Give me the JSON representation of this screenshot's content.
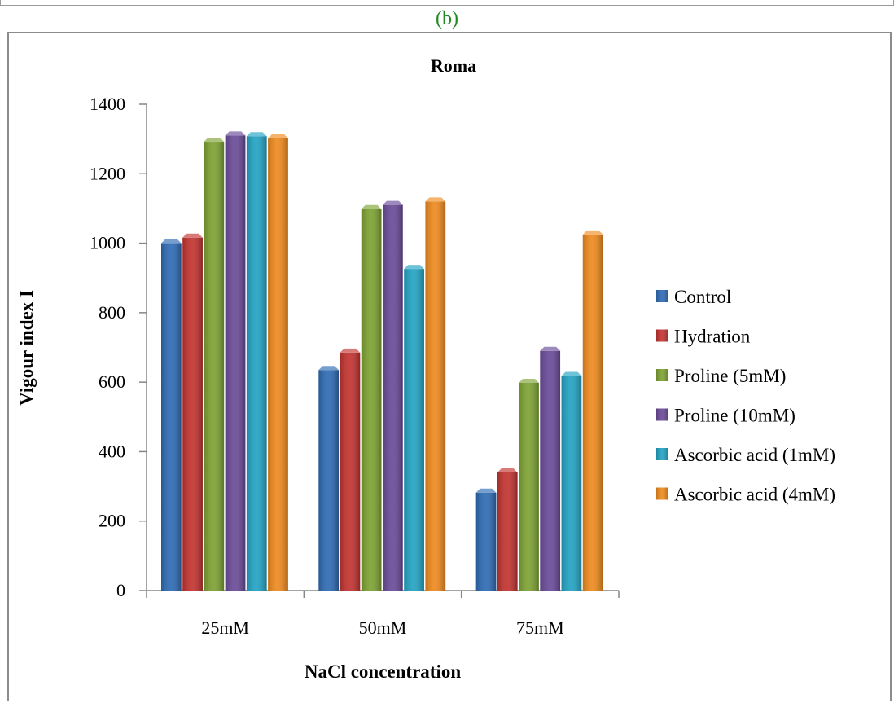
{
  "panel_label": "(b)",
  "chart_data": {
    "type": "bar",
    "title": "Roma",
    "xlabel": "NaCl concentration",
    "ylabel": "Vigour index I",
    "ylim": [
      0,
      1400
    ],
    "yticks": [
      0,
      200,
      400,
      600,
      800,
      1000,
      1200,
      1400
    ],
    "categories": [
      "25mM",
      "50mM",
      "75mM"
    ],
    "legend_position": "right",
    "grid": false,
    "series": [
      {
        "name": "Control",
        "color": "#2e6bb4",
        "values": [
          1000,
          635,
          282
        ]
      },
      {
        "name": "Hydration",
        "color": "#c2332f",
        "values": [
          1016,
          685,
          340
        ]
      },
      {
        "name": "Proline (5mM)",
        "color": "#7da232",
        "values": [
          1292,
          1098,
          598
        ]
      },
      {
        "name": "Proline (10mM)",
        "color": "#6a4a98",
        "values": [
          1310,
          1110,
          690
        ]
      },
      {
        "name": "Ascorbic acid (1mM)",
        "color": "#22a3c3",
        "values": [
          1308,
          926,
          618
        ]
      },
      {
        "name": "Ascorbic acid (4mM)",
        "color": "#ef8a1e",
        "values": [
          1302,
          1120,
          1025
        ]
      }
    ]
  }
}
